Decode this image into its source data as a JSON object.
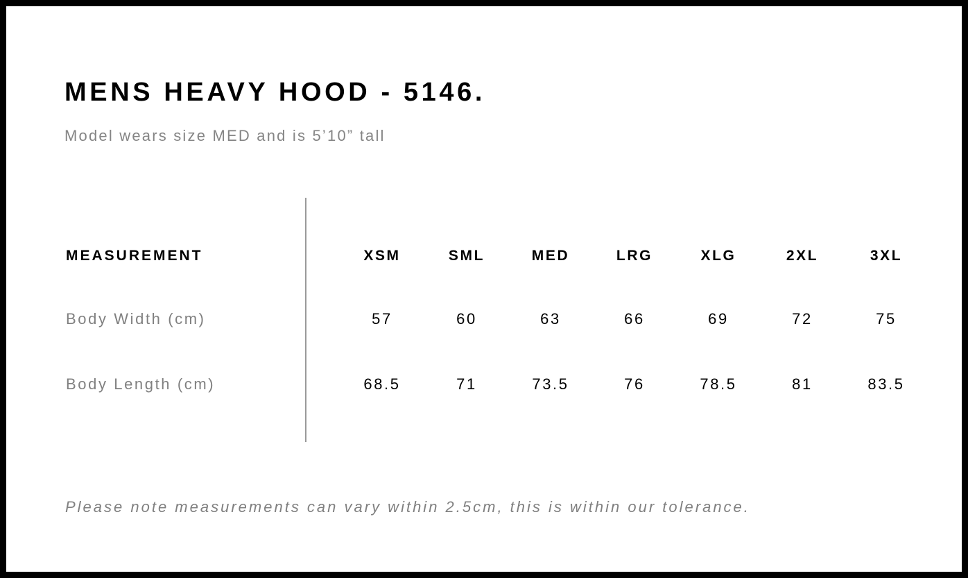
{
  "title": "MENS HEAVY HOOD - 5146.",
  "subtitle": "Model wears size MED and is 5’10” tall",
  "table": {
    "header_label": "MEASUREMENT",
    "sizes": [
      "XSM",
      "SML",
      "MED",
      "LRG",
      "XLG",
      "2XL",
      "3XL"
    ],
    "rows": [
      {
        "label": "Body Width (cm)",
        "values": [
          "57",
          "60",
          "63",
          "66",
          "69",
          "72",
          "75"
        ]
      },
      {
        "label": "Body Length (cm)",
        "values": [
          "68.5",
          "71",
          "73.5",
          "76",
          "78.5",
          "81",
          "83.5"
        ]
      }
    ]
  },
  "note": "Please note measurements can vary within 2.5cm, this is within our tolerance."
}
